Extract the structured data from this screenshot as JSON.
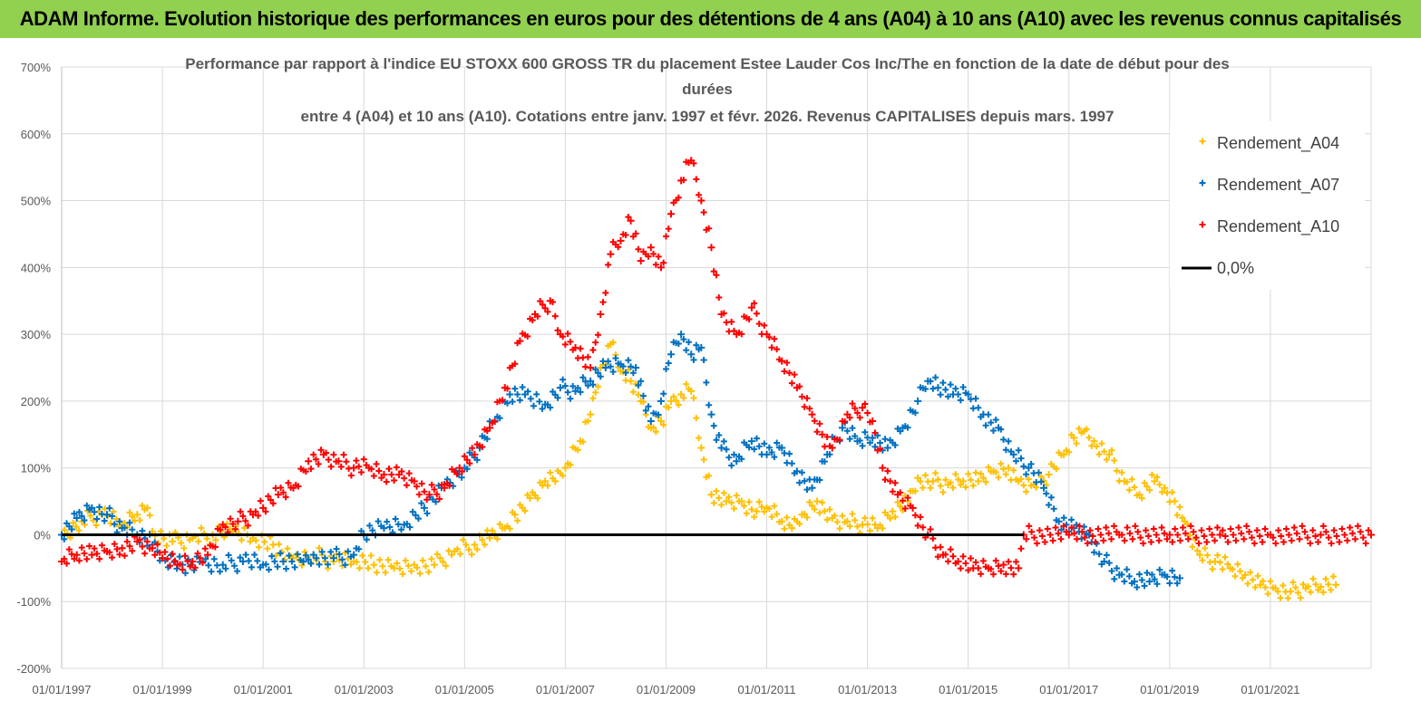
{
  "header": {
    "title": "ADAM Informe. Evolution historique des performances en euros pour des détentions de 4 ans (A04) à 10 ans (A10) avec les revenus connus capitalisés"
  },
  "chart_data": {
    "type": "scatter",
    "title_lines": [
      "Performance par rapport à l'indice EU STOXX 600 GROSS TR  du placement Estee Lauder Cos Inc/The en fonction de la  date de début pour des",
      "durées",
      "entre 4 (A04) et 10 ans (A10).  Cotations entre janv. 1997 et févr. 2026. Revenus  CAPITALISES  depuis mars. 1997"
    ],
    "xlabel": "",
    "ylabel": "",
    "x_range": [
      1997.0,
      2023.0
    ],
    "ylim": [
      -200,
      700
    ],
    "y_ticks": [
      700,
      600,
      500,
      400,
      300,
      200,
      100,
      0,
      -100,
      -200
    ],
    "y_tick_labels": [
      "700%",
      "600%",
      "500%",
      "400%",
      "300%",
      "200%",
      "100%",
      "0%",
      "-100%",
      "-200%"
    ],
    "x_ticks": [
      1997,
      1999,
      2001,
      2003,
      2005,
      2007,
      2009,
      2011,
      2013,
      2015,
      2017,
      2019,
      2021
    ],
    "x_tick_labels": [
      "01/01/1997",
      "01/01/1999",
      "01/01/2001",
      "01/01/2003",
      "01/01/2005",
      "01/01/2007",
      "01/01/2009",
      "01/01/2011",
      "01/01/2013",
      "01/01/2015",
      "01/01/2017",
      "01/01/2019",
      "01/01/2021"
    ],
    "grid": true,
    "legend_position": "top-right",
    "series": [
      {
        "name": "Rendement_A04",
        "color": "#ffc000",
        "marker": "plus",
        "points": [
          [
            1997.0,
            0
          ],
          [
            1997.4,
            20
          ],
          [
            1997.8,
            30
          ],
          [
            1998.2,
            15
          ],
          [
            1998.5,
            30
          ],
          [
            1998.7,
            40
          ],
          [
            1998.8,
            5
          ],
          [
            1999.2,
            -10
          ],
          [
            1999.6,
            -5
          ],
          [
            2000.0,
            0
          ],
          [
            2000.4,
            5
          ],
          [
            2000.8,
            -5
          ],
          [
            2001.2,
            -15
          ],
          [
            2001.6,
            -35
          ],
          [
            2002.0,
            -30
          ],
          [
            2002.4,
            -40
          ],
          [
            2002.8,
            -40
          ],
          [
            2003.2,
            -45
          ],
          [
            2003.6,
            -50
          ],
          [
            2004.0,
            -45
          ],
          [
            2004.4,
            -45
          ],
          [
            2004.8,
            -25
          ],
          [
            2005.2,
            -15
          ],
          [
            2005.5,
            -5
          ],
          [
            2005.8,
            10
          ],
          [
            2006.0,
            30
          ],
          [
            2006.3,
            55
          ],
          [
            2006.6,
            80
          ],
          [
            2006.8,
            80
          ],
          [
            2007.0,
            100
          ],
          [
            2007.3,
            140
          ],
          [
            2007.5,
            180
          ],
          [
            2007.7,
            250
          ],
          [
            2007.9,
            285
          ],
          [
            2008.1,
            245
          ],
          [
            2008.3,
            230
          ],
          [
            2008.5,
            200
          ],
          [
            2008.7,
            160
          ],
          [
            2008.9,
            170
          ],
          [
            2009.1,
            200
          ],
          [
            2009.3,
            210
          ],
          [
            2009.5,
            215
          ],
          [
            2009.7,
            130
          ],
          [
            2009.9,
            60
          ],
          [
            2010.2,
            50
          ],
          [
            2010.5,
            50
          ],
          [
            2010.8,
            35
          ],
          [
            2011.0,
            40
          ],
          [
            2011.3,
            20
          ],
          [
            2011.5,
            10
          ],
          [
            2011.7,
            30
          ],
          [
            2012.0,
            50
          ],
          [
            2012.3,
            25
          ],
          [
            2012.6,
            20
          ],
          [
            2012.9,
            15
          ],
          [
            2013.2,
            10
          ],
          [
            2013.5,
            35
          ],
          [
            2013.8,
            50
          ],
          [
            2014.0,
            85
          ],
          [
            2014.3,
            80
          ],
          [
            2014.6,
            75
          ],
          [
            2014.9,
            80
          ],
          [
            2015.2,
            80
          ],
          [
            2015.5,
            95
          ],
          [
            2015.8,
            100
          ],
          [
            2016.0,
            80
          ],
          [
            2016.3,
            75
          ],
          [
            2016.6,
            90
          ],
          [
            2016.9,
            120
          ],
          [
            2017.1,
            145
          ],
          [
            2017.3,
            155
          ],
          [
            2017.5,
            140
          ],
          [
            2017.8,
            120
          ],
          [
            2018.1,
            80
          ],
          [
            2018.4,
            60
          ],
          [
            2018.7,
            80
          ],
          [
            2018.9,
            70
          ],
          [
            2019.1,
            50
          ],
          [
            2019.3,
            20
          ],
          [
            2019.6,
            -30
          ],
          [
            2019.9,
            -40
          ],
          [
            2020.2,
            -50
          ],
          [
            2020.5,
            -60
          ],
          [
            2020.8,
            -75
          ],
          [
            2021.1,
            -80
          ],
          [
            2021.4,
            -85
          ],
          [
            2021.7,
            -80
          ],
          [
            2022.0,
            -78
          ],
          [
            2022.3,
            -75
          ]
        ]
      },
      {
        "name": "Rendement_A07",
        "color": "#0070c0",
        "marker": "plus",
        "points": [
          [
            1997.0,
            0
          ],
          [
            1997.3,
            25
          ],
          [
            1997.6,
            40
          ],
          [
            1997.9,
            30
          ],
          [
            1998.2,
            10
          ],
          [
            1998.5,
            0
          ],
          [
            1998.8,
            -15
          ],
          [
            1999.0,
            -35
          ],
          [
            1999.4,
            -45
          ],
          [
            1999.8,
            -40
          ],
          [
            2000.2,
            -45
          ],
          [
            2000.6,
            -40
          ],
          [
            2001.0,
            -45
          ],
          [
            2001.4,
            -40
          ],
          [
            2001.8,
            -40
          ],
          [
            2002.0,
            -30
          ],
          [
            2002.4,
            -35
          ],
          [
            2002.8,
            -30
          ],
          [
            2003.0,
            0
          ],
          [
            2003.4,
            10
          ],
          [
            2003.8,
            15
          ],
          [
            2004.2,
            40
          ],
          [
            2004.6,
            75
          ],
          [
            2005.0,
            100
          ],
          [
            2005.3,
            130
          ],
          [
            2005.6,
            170
          ],
          [
            2005.9,
            210
          ],
          [
            2006.2,
            210
          ],
          [
            2006.6,
            195
          ],
          [
            2006.9,
            220
          ],
          [
            2007.2,
            215
          ],
          [
            2007.5,
            230
          ],
          [
            2007.8,
            250
          ],
          [
            2008.1,
            255
          ],
          [
            2008.4,
            250
          ],
          [
            2008.7,
            170
          ],
          [
            2008.9,
            200
          ],
          [
            2009.1,
            270
          ],
          [
            2009.3,
            300
          ],
          [
            2009.5,
            270
          ],
          [
            2009.7,
            280
          ],
          [
            2009.9,
            180
          ],
          [
            2010.1,
            130
          ],
          [
            2010.4,
            110
          ],
          [
            2010.7,
            140
          ],
          [
            2011.0,
            120
          ],
          [
            2011.3,
            130
          ],
          [
            2011.6,
            95
          ],
          [
            2011.9,
            70
          ],
          [
            2012.2,
            120
          ],
          [
            2012.5,
            160
          ],
          [
            2012.8,
            140
          ],
          [
            2013.1,
            145
          ],
          [
            2013.4,
            130
          ],
          [
            2013.7,
            160
          ],
          [
            2014.0,
            200
          ],
          [
            2014.2,
            230
          ],
          [
            2014.4,
            220
          ],
          [
            2014.7,
            210
          ],
          [
            2015.0,
            210
          ],
          [
            2015.3,
            180
          ],
          [
            2015.6,
            160
          ],
          [
            2015.9,
            120
          ],
          [
            2016.2,
            100
          ],
          [
            2016.5,
            70
          ],
          [
            2016.8,
            20
          ],
          [
            2017.1,
            10
          ],
          [
            2017.4,
            0
          ],
          [
            2017.7,
            -40
          ],
          [
            2018.0,
            -60
          ],
          [
            2018.3,
            -70
          ],
          [
            2018.6,
            -70
          ],
          [
            2018.9,
            -60
          ],
          [
            2019.2,
            -65
          ]
        ]
      },
      {
        "name": "Rendement_A10",
        "color": "#ff0000",
        "marker": "plus",
        "points": [
          [
            1997.0,
            -40
          ],
          [
            1997.3,
            -30
          ],
          [
            1997.6,
            -30
          ],
          [
            1997.9,
            -25
          ],
          [
            1998.2,
            -20
          ],
          [
            1998.5,
            -10
          ],
          [
            1998.8,
            -20
          ],
          [
            1999.0,
            -35
          ],
          [
            1999.3,
            -45
          ],
          [
            1999.6,
            -40
          ],
          [
            1999.9,
            -30
          ],
          [
            2000.2,
            15
          ],
          [
            2000.5,
            20
          ],
          [
            2000.8,
            30
          ],
          [
            2001.0,
            40
          ],
          [
            2001.3,
            60
          ],
          [
            2001.6,
            70
          ],
          [
            2001.9,
            110
          ],
          [
            2002.2,
            120
          ],
          [
            2002.5,
            110
          ],
          [
            2002.8,
            100
          ],
          [
            2003.1,
            100
          ],
          [
            2003.4,
            90
          ],
          [
            2003.7,
            90
          ],
          [
            2004.0,
            80
          ],
          [
            2004.3,
            60
          ],
          [
            2004.6,
            70
          ],
          [
            2004.9,
            100
          ],
          [
            2005.2,
            120
          ],
          [
            2005.5,
            160
          ],
          [
            2005.8,
            220
          ],
          [
            2006.1,
            290
          ],
          [
            2006.4,
            330
          ],
          [
            2006.7,
            350
          ],
          [
            2006.9,
            300
          ],
          [
            2007.2,
            280
          ],
          [
            2007.5,
            250
          ],
          [
            2007.7,
            330
          ],
          [
            2007.9,
            420
          ],
          [
            2008.1,
            440
          ],
          [
            2008.3,
            470
          ],
          [
            2008.5,
            410
          ],
          [
            2008.7,
            430
          ],
          [
            2008.9,
            400
          ],
          [
            2009.1,
            480
          ],
          [
            2009.3,
            530
          ],
          [
            2009.5,
            560
          ],
          [
            2009.7,
            500
          ],
          [
            2009.9,
            430
          ],
          [
            2010.1,
            330
          ],
          [
            2010.4,
            300
          ],
          [
            2010.7,
            340
          ],
          [
            2011.0,
            300
          ],
          [
            2011.3,
            260
          ],
          [
            2011.6,
            220
          ],
          [
            2011.9,
            180
          ],
          [
            2012.1,
            150
          ],
          [
            2012.3,
            130
          ],
          [
            2012.6,
            180
          ],
          [
            2012.9,
            190
          ],
          [
            2013.1,
            170
          ],
          [
            2013.3,
            100
          ],
          [
            2013.6,
            60
          ],
          [
            2013.9,
            40
          ],
          [
            2014.2,
            0
          ],
          [
            2014.5,
            -30
          ],
          [
            2014.8,
            -40
          ],
          [
            2015.1,
            -50
          ],
          [
            2015.4,
            -50
          ],
          [
            2015.7,
            -45
          ],
          [
            2016.0,
            -50
          ],
          [
            2016.1,
            0
          ],
          [
            2017.0,
            0
          ],
          [
            2018.0,
            0
          ],
          [
            2019.0,
            0
          ],
          [
            2020.0,
            0
          ],
          [
            2021.0,
            0
          ],
          [
            2022.0,
            0
          ],
          [
            2023.0,
            0
          ]
        ]
      },
      {
        "name": "0,0%",
        "color": "#000000",
        "marker": "line",
        "points": [
          [
            1997.0,
            0
          ],
          [
            2016.1,
            0
          ]
        ]
      }
    ]
  }
}
